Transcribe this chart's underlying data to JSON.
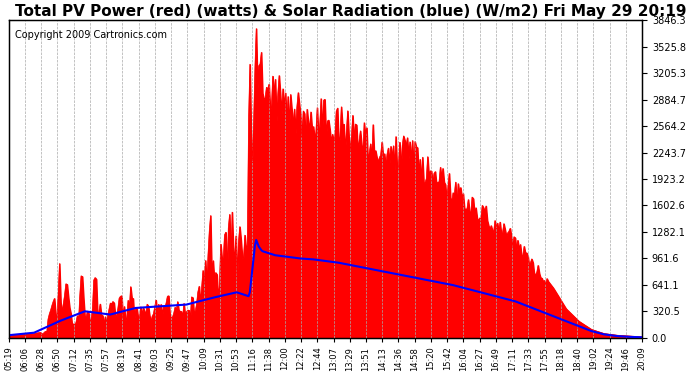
{
  "title": "Total PV Power (red) (watts) & Solar Radiation (blue) (W/m2) Fri May 29 20:19",
  "copyright": "Copyright 2009 Cartronics.com",
  "background_color": "#ffffff",
  "plot_bg_color": "#ffffff",
  "grid_color": "#aaaaaa",
  "y_max": 3846.3,
  "y_min": 0.0,
  "y_ticks": [
    0.0,
    320.5,
    641.1,
    961.6,
    1282.1,
    1602.6,
    1923.2,
    2243.7,
    2564.2,
    2884.7,
    3205.3,
    3525.8,
    3846.3
  ],
  "x_labels": [
    "05:19",
    "06:06",
    "06:28",
    "06:50",
    "07:12",
    "07:35",
    "07:57",
    "08:19",
    "08:41",
    "09:03",
    "09:25",
    "09:47",
    "10:09",
    "10:31",
    "10:53",
    "11:16",
    "11:38",
    "12:00",
    "12:22",
    "12:44",
    "13:07",
    "13:29",
    "13:51",
    "14:13",
    "14:36",
    "14:58",
    "15:20",
    "15:42",
    "16:04",
    "16:27",
    "16:49",
    "17:11",
    "17:33",
    "17:55",
    "18:18",
    "18:40",
    "19:02",
    "19:24",
    "19:46",
    "20:09"
  ],
  "red_color": "#ff0000",
  "blue_color": "#0000ff",
  "title_fontsize": 11,
  "copyright_fontsize": 7
}
